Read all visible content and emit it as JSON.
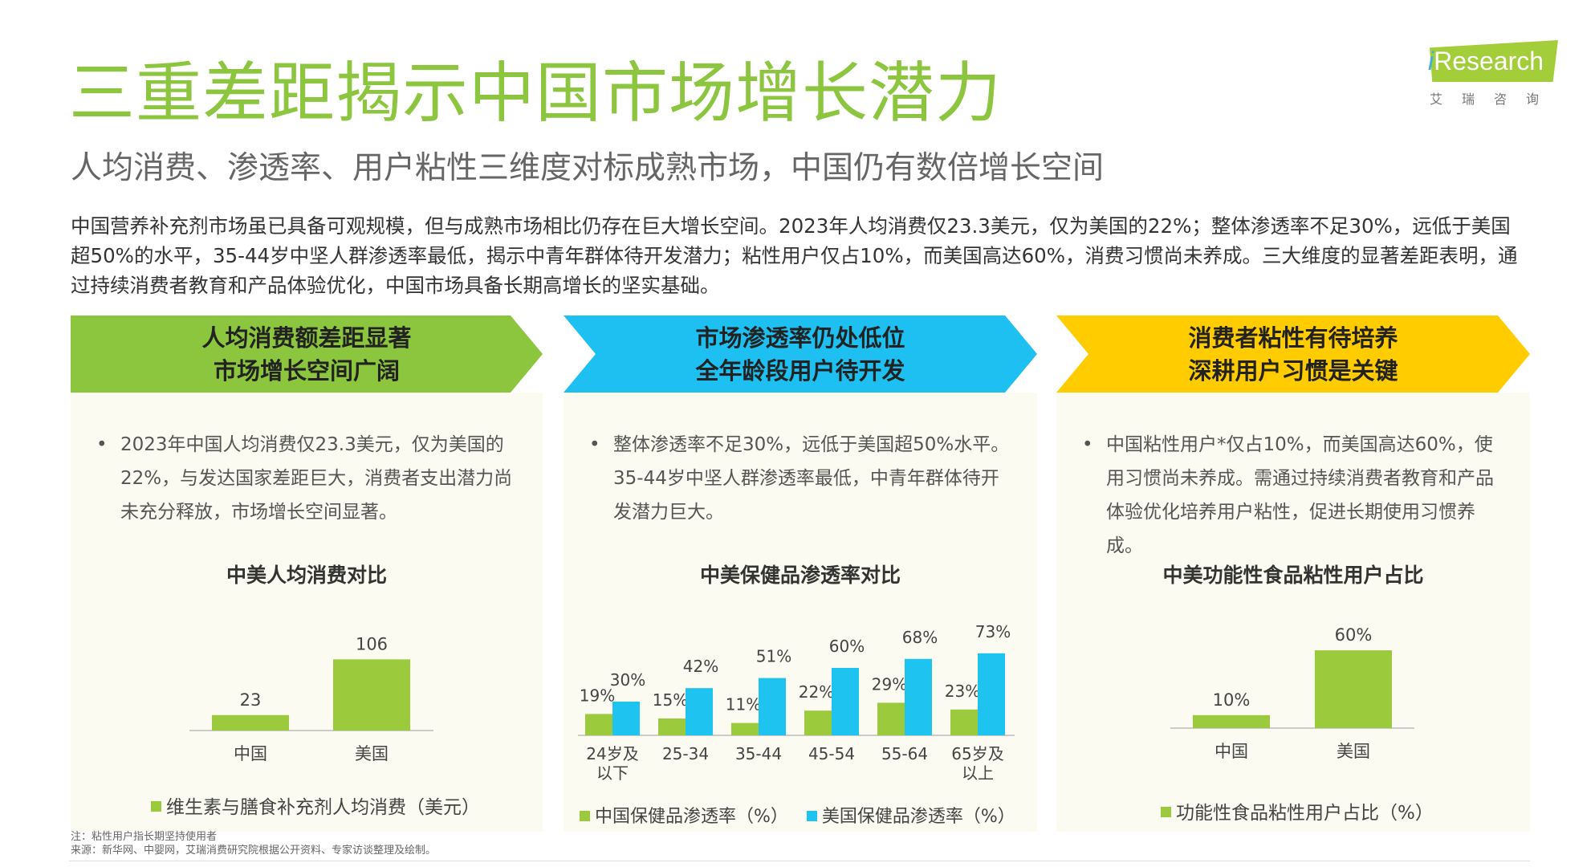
{
  "title": "三重差距揭示中国市场增长潜力",
  "subtitle": "人均消费、渗透率、用户粘性三维度对标成熟市场，中国仍有数倍增长空间",
  "summary": "中国营养补充剂市场虽已具备可观规模，但与成熟市场相比仍存在巨大增长空间。2023年人均消费仅23.3美元，仅为美国的22%；整体渗透率不足30%，远低于美国超50%的水平，35-44岁中坚人群渗透率最低，揭示中青年群体待开发潜力；粘性用户仅占10%，而美国高达60%，消费习惯尚未养成。三大维度的显著差距表明，通过持续消费者教育和产品体验优化，中国市场具备长期高增长的坚实基础。",
  "logo": {
    "brand_i": "i",
    "brand_rest": "Research",
    "cn": "艾瑞咨询"
  },
  "colors": {
    "green": "#8cc63f",
    "blue": "#1dc0f0",
    "yellow": "#ffcc00",
    "bar_green": "#9bcb3c",
    "bar_blue": "#1ec3f0"
  },
  "banners": [
    {
      "line1": "人均消费额差距显著",
      "line2": "市场增长空间广阔",
      "color": "#8cc63f"
    },
    {
      "line1": "市场渗透率仍处低位",
      "line2": "全年龄段用户待开发",
      "color": "#1dc0f0"
    },
    {
      "line1": "消费者粘性有待培养",
      "line2": "深耕用户习惯是关键",
      "color": "#ffcc00"
    }
  ],
  "panels": [
    {
      "bullet": "2023年中国人均消费仅23.3美元，仅为美国的22%，与发达国家差距巨大，消费者支出潜力尚未充分释放，市场增长空间显著。"
    },
    {
      "bullet": "整体渗透率不足30%，远低于美国超50%水平。35-44岁中坚人群渗透率最低，中青年群体待开发潜力巨大。"
    },
    {
      "bullet": "中国粘性用户*仅占10%，而美国高达60%，使用习惯尚未养成。需通过持续消费者教育和产品体验优化培养用户粘性，促进长期使用习惯养成。"
    }
  ],
  "chart_data": [
    {
      "type": "bar",
      "title": "中美人均消费对比",
      "categories": [
        "中国",
        "美国"
      ],
      "series": [
        {
          "name": "维生素与膳食补充剂人均消费（美元）",
          "values": [
            23,
            106
          ],
          "labels": [
            "23",
            "106"
          ]
        }
      ],
      "ylim": [
        0,
        110
      ]
    },
    {
      "type": "bar",
      "title": "中美保健品渗透率对比",
      "categories": [
        "24岁及以下",
        "25-34",
        "35-44",
        "45-54",
        "55-64",
        "65岁及以上"
      ],
      "category_lines": [
        [
          "24岁及",
          "以下"
        ],
        [
          "25-34"
        ],
        [
          "35-44"
        ],
        [
          "45-54"
        ],
        [
          "55-64"
        ],
        [
          "65岁及",
          "以上"
        ]
      ],
      "series": [
        {
          "name": "中国保健品渗透率（%）",
          "values": [
            19,
            15,
            11,
            22,
            29,
            23
          ],
          "labels": [
            "19%",
            "15%",
            "11%",
            "22%",
            "29%",
            "23%"
          ]
        },
        {
          "name": "美国保健品渗透率（%）",
          "values": [
            30,
            42,
            51,
            60,
            68,
            73
          ],
          "labels": [
            "30%",
            "42%",
            "51%",
            "60%",
            "68%",
            "73%"
          ]
        }
      ],
      "ylim": [
        0,
        80
      ]
    },
    {
      "type": "bar",
      "title": "中美功能性食品粘性用户占比",
      "categories": [
        "中国",
        "美国"
      ],
      "series": [
        {
          "name": "功能性食品粘性用户占比（%）",
          "values": [
            10,
            60
          ],
          "labels": [
            "10%",
            "60%"
          ]
        }
      ],
      "ylim": [
        0,
        65
      ]
    }
  ],
  "footnotes": {
    "note": "注：粘性用户指长期坚持使用者",
    "source": "来源：新华网、中婴网，艾瑞消费研究院根据公开资料、专家访谈整理及绘制。"
  }
}
